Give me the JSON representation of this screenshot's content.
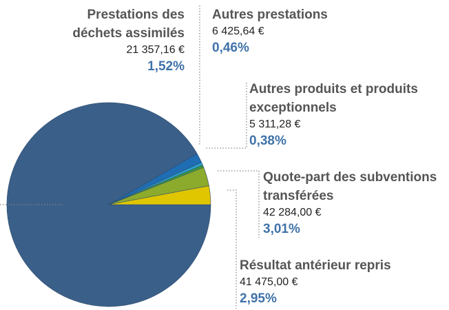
{
  "chart_data": {
    "type": "pie",
    "categories": [
      null,
      "Prestations des déchets assimilés",
      "Autres prestations",
      "Autres produits et produits exceptionnels",
      "Quote-part des subventions transférées",
      "Résultat antérieur repris"
    ],
    "values": [
      91.68,
      1.52,
      0.46,
      0.38,
      3.01,
      2.95
    ],
    "value_labels": [
      null,
      "1,52%",
      "0,46%",
      "0,38%",
      "3,01%",
      "2,95%"
    ],
    "amounts": [
      null,
      "21 357,16 €",
      "6 425,64 €",
      "5 311,28 €",
      "42 284,00 €",
      "41 475,00 €"
    ],
    "colors": [
      "#3a5f88",
      "#1f6db3",
      "#2b9fc9",
      "#3c9b3c",
      "#8caa2c",
      "#dfc600"
    ]
  }
}
